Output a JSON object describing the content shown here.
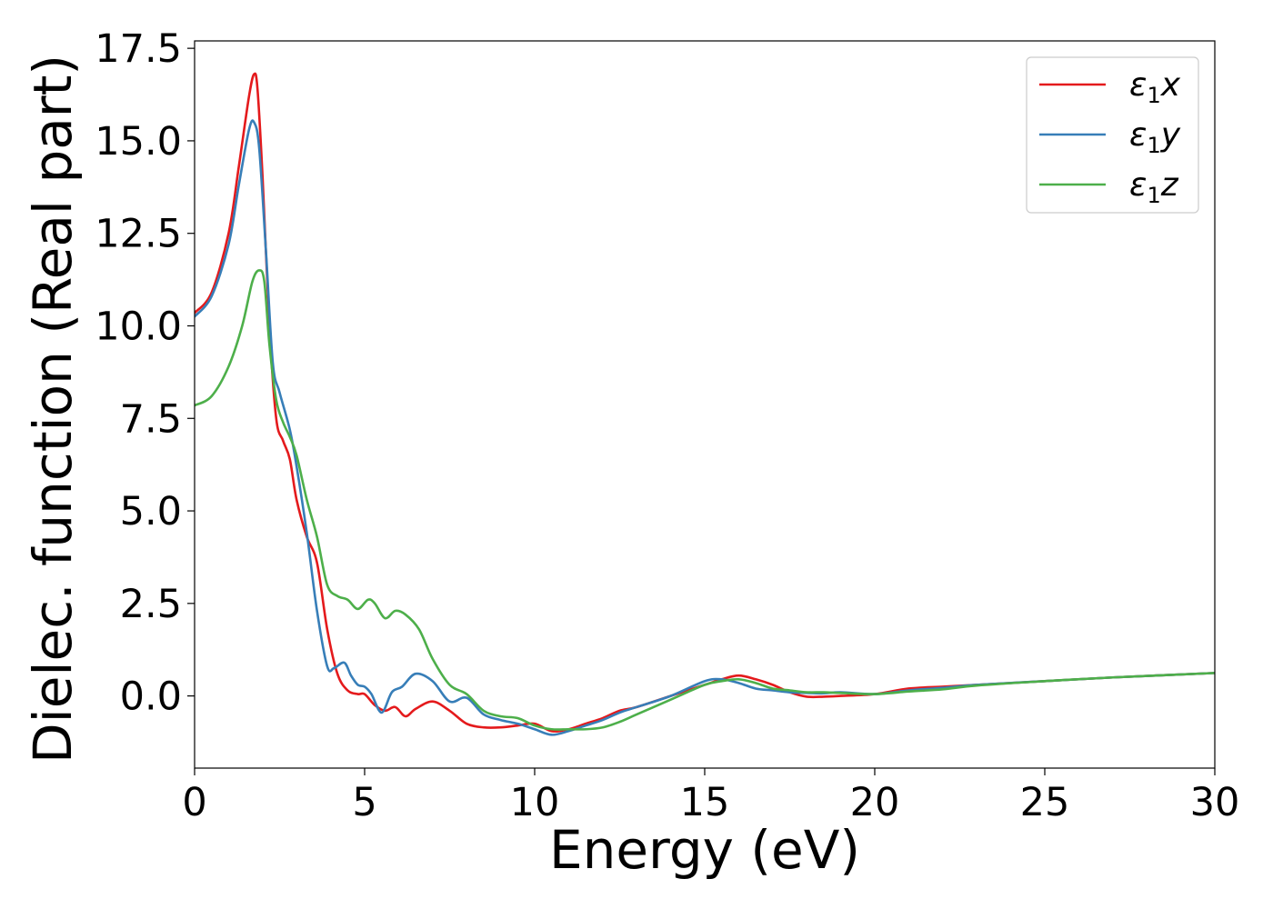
{
  "chart_data": {
    "type": "line",
    "title": "",
    "xlabel": "Energy (eV)",
    "ylabel": "Dielec. function (Real part)",
    "xlim": [
      0,
      30
    ],
    "ylim": [
      -1.95,
      17.7
    ],
    "xticks": [
      0,
      5,
      10,
      15,
      20,
      25,
      30
    ],
    "xtick_labels": [
      "0",
      "5",
      "10",
      "15",
      "20",
      "25",
      "30"
    ],
    "yticks": [
      0.0,
      2.5,
      5.0,
      7.5,
      10.0,
      12.5,
      15.0,
      17.5
    ],
    "ytick_labels": [
      "0.0",
      "2.5",
      "5.0",
      "7.5",
      "10.0",
      "12.5",
      "15.0",
      "17.5"
    ],
    "grid": false,
    "legend_position": "top-right",
    "series": [
      {
        "name": "ε1x",
        "legend_main": "ε",
        "legend_sub": "1",
        "legend_var": "x",
        "color": "#e41a1c",
        "x": [
          0,
          0.5,
          1.0,
          1.3,
          1.6,
          1.75,
          1.85,
          2.0,
          2.2,
          2.4,
          2.6,
          2.8,
          3.0,
          3.3,
          3.6,
          3.9,
          4.2,
          4.5,
          4.8,
          5.0,
          5.3,
          5.6,
          5.9,
          6.2,
          6.5,
          7.0,
          7.5,
          8.0,
          8.5,
          9.0,
          9.5,
          10.0,
          10.5,
          11.0,
          11.5,
          12.0,
          12.5,
          13.0,
          14.0,
          15.0,
          15.5,
          16.0,
          16.5,
          17.0,
          17.5,
          18.0,
          18.5,
          19.0,
          20.0,
          21.0,
          22.0,
          23.0,
          25.0,
          27.0,
          30.0
        ],
        "y": [
          10.35,
          10.9,
          12.5,
          14.3,
          16.2,
          16.8,
          16.4,
          14.0,
          10.0,
          7.5,
          6.9,
          6.4,
          5.3,
          4.3,
          3.6,
          1.8,
          0.6,
          0.15,
          0.05,
          0.05,
          -0.25,
          -0.4,
          -0.3,
          -0.55,
          -0.35,
          -0.15,
          -0.4,
          -0.75,
          -0.85,
          -0.85,
          -0.8,
          -0.75,
          -0.95,
          -0.9,
          -0.75,
          -0.6,
          -0.4,
          -0.3,
          0.0,
          0.3,
          0.45,
          0.55,
          0.45,
          0.3,
          0.1,
          -0.02,
          -0.02,
          0.0,
          0.05,
          0.2,
          0.25,
          0.3,
          0.4,
          0.5,
          0.62
        ]
      },
      {
        "name": "ε1y",
        "legend_main": "ε",
        "legend_sub": "1",
        "legend_var": "y",
        "color": "#377eb8",
        "x": [
          0,
          0.5,
          1.0,
          1.3,
          1.6,
          1.75,
          1.9,
          2.1,
          2.3,
          2.5,
          2.8,
          3.0,
          3.3,
          3.6,
          3.9,
          4.1,
          4.4,
          4.6,
          4.8,
          5.0,
          5.2,
          5.5,
          5.8,
          6.1,
          6.5,
          7.0,
          7.5,
          8.0,
          8.5,
          9.0,
          9.5,
          10.0,
          10.5,
          11.0,
          11.5,
          12.0,
          12.5,
          13.0,
          14.0,
          15.0,
          15.5,
          16.0,
          16.5,
          17.0,
          17.5,
          18.0,
          18.5,
          19.0,
          20.0,
          21.0,
          22.0,
          23.0,
          25.0,
          27.0,
          30.0
        ],
        "y": [
          10.25,
          10.8,
          12.2,
          13.8,
          15.3,
          15.5,
          14.8,
          12.0,
          9.0,
          8.2,
          7.2,
          6.2,
          4.4,
          2.3,
          0.8,
          0.75,
          0.9,
          0.55,
          0.3,
          0.25,
          0.05,
          -0.45,
          0.1,
          0.25,
          0.6,
          0.4,
          -0.15,
          -0.05,
          -0.5,
          -0.65,
          -0.75,
          -0.9,
          -1.05,
          -0.95,
          -0.8,
          -0.65,
          -0.45,
          -0.3,
          0.0,
          0.4,
          0.45,
          0.35,
          0.2,
          0.15,
          0.1,
          0.08,
          0.07,
          0.1,
          0.05,
          0.15,
          0.22,
          0.3,
          0.4,
          0.5,
          0.62
        ]
      },
      {
        "name": "ε1z",
        "legend_main": "ε",
        "legend_sub": "1",
        "legend_var": "z",
        "color": "#4daf4a",
        "x": [
          0,
          0.5,
          1.0,
          1.4,
          1.7,
          1.9,
          2.05,
          2.2,
          2.4,
          2.6,
          2.8,
          3.0,
          3.3,
          3.6,
          3.9,
          4.2,
          4.5,
          4.8,
          5.1,
          5.3,
          5.6,
          5.9,
          6.2,
          6.6,
          7.0,
          7.5,
          8.0,
          8.5,
          9.0,
          9.5,
          10.0,
          10.5,
          11.0,
          11.5,
          12.0,
          12.5,
          13.0,
          14.0,
          15.0,
          15.5,
          16.0,
          16.5,
          17.0,
          17.5,
          18.0,
          18.5,
          19.0,
          20.0,
          21.0,
          22.0,
          23.0,
          25.0,
          27.0,
          30.0
        ],
        "y": [
          7.85,
          8.1,
          8.9,
          10.0,
          11.2,
          11.5,
          11.2,
          9.5,
          8.0,
          7.4,
          7.0,
          6.5,
          5.3,
          4.3,
          3.0,
          2.7,
          2.6,
          2.35,
          2.6,
          2.5,
          2.1,
          2.3,
          2.2,
          1.8,
          1.0,
          0.3,
          0.05,
          -0.4,
          -0.55,
          -0.6,
          -0.8,
          -0.9,
          -0.9,
          -0.9,
          -0.85,
          -0.7,
          -0.5,
          -0.1,
          0.3,
          0.4,
          0.45,
          0.35,
          0.2,
          0.15,
          0.1,
          0.1,
          0.08,
          0.05,
          0.12,
          0.18,
          0.28,
          0.4,
          0.5,
          0.62
        ]
      }
    ]
  }
}
